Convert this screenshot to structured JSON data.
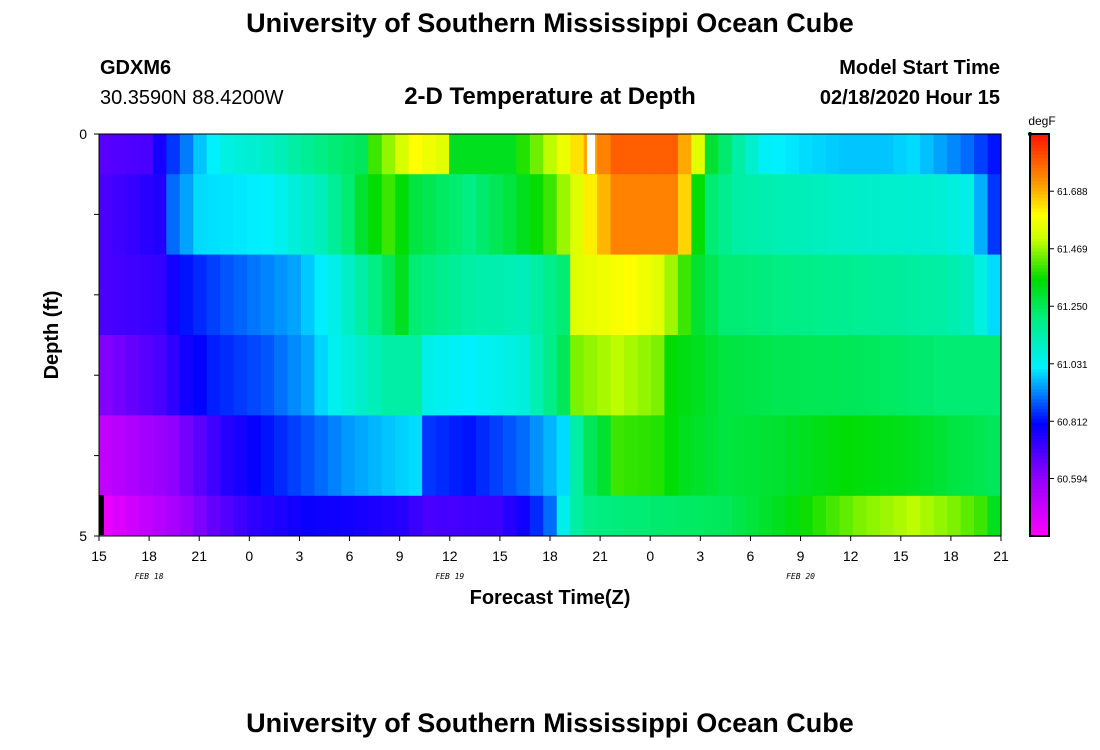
{
  "header": {
    "title": "University of Southern Mississippi Ocean Cube",
    "station_id": "GDXM6",
    "location": "30.3590N 88.4200W",
    "plot_title": "2-D Temperature at Depth",
    "start_label": "Model Start Time",
    "start_value": "02/18/2020 Hour 15"
  },
  "footer": {
    "title": "University of Southern Mississippi Ocean Cube"
  },
  "chart_data": {
    "type": "heatmap",
    "title": "2-D Temperature at Depth",
    "xlabel": "Forecast Time(Z)",
    "ylabel": "Depth (ft)",
    "x_tick_labels": [
      "15",
      "18",
      "21",
      "0",
      "3",
      "6",
      "9",
      "12",
      "15",
      "18",
      "21",
      "0",
      "3",
      "6",
      "9",
      "12",
      "15",
      "18",
      "21"
    ],
    "date_labels": [
      {
        "text": "FEB 18",
        "at_tick": 1
      },
      {
        "text": "FEB 19",
        "at_tick": 7
      },
      {
        "text": "FEB 20",
        "at_tick": 14
      }
    ],
    "y_tick_labels": [
      {
        "text": "0",
        "value": 0
      },
      {
        "text": "5",
        "value": 5
      }
    ],
    "ylim": [
      0,
      5
    ],
    "colorbar": {
      "unit": "degF",
      "range": [
        60.375,
        61.906
      ],
      "tick_labels": [
        "61.688",
        "61.469",
        "61.250",
        "61.031",
        "60.812",
        "60.594"
      ],
      "tick_values": [
        61.688,
        61.469,
        61.25,
        61.031,
        60.812,
        60.594
      ]
    },
    "hours": "hourly from Feb 18 hour 15 to Feb 20 hour 21 (55 columns)",
    "depth_rows": [
      {
        "depth_ft": 0.25,
        "keys": [
          [
            0,
            60.68
          ],
          [
            3,
            60.7
          ],
          [
            5,
            60.85
          ],
          [
            7,
            60.98
          ],
          [
            9,
            61.06
          ],
          [
            12,
            61.1
          ],
          [
            16,
            61.2
          ],
          [
            19,
            61.25
          ],
          [
            20,
            61.4
          ],
          [
            23,
            61.6
          ],
          [
            25,
            61.55
          ],
          [
            26,
            61.32
          ],
          [
            30,
            61.32
          ],
          [
            33,
            61.5
          ],
          [
            36,
            61.7
          ],
          [
            38,
            61.8
          ],
          [
            42,
            61.8
          ],
          [
            43,
            61.7
          ],
          [
            44,
            61.55
          ],
          [
            45,
            61.3
          ],
          [
            47,
            61.15
          ],
          [
            49,
            61.03
          ],
          [
            52,
            61.0
          ],
          [
            55,
            60.98
          ],
          [
            58,
            60.98
          ],
          [
            60,
            61.0
          ],
          [
            62,
            60.95
          ],
          [
            64,
            60.9
          ],
          [
            66,
            60.82
          ],
          [
            67,
            60.82
          ]
        ]
      },
      {
        "depth_ft": 1.0,
        "keys": [
          [
            0,
            60.7
          ],
          [
            4,
            60.76
          ],
          [
            5,
            60.9
          ],
          [
            7,
            61.0
          ],
          [
            12,
            61.02
          ],
          [
            16,
            61.12
          ],
          [
            18,
            61.22
          ],
          [
            19,
            61.3
          ],
          [
            21,
            61.4
          ],
          [
            22,
            61.35
          ],
          [
            23,
            61.28
          ],
          [
            27,
            61.2
          ],
          [
            30,
            61.28
          ],
          [
            33,
            61.4
          ],
          [
            36,
            61.62
          ],
          [
            38,
            61.75
          ],
          [
            42,
            61.75
          ],
          [
            43,
            61.65
          ],
          [
            44,
            61.35
          ],
          [
            45,
            61.22
          ],
          [
            47,
            61.15
          ],
          [
            55,
            61.1
          ],
          [
            62,
            61.08
          ],
          [
            64,
            61.05
          ],
          [
            65,
            60.96
          ],
          [
            66,
            60.85
          ],
          [
            67,
            60.82
          ]
        ]
      },
      {
        "depth_ft": 2.0,
        "keys": [
          [
            0,
            60.7
          ],
          [
            4,
            60.73
          ],
          [
            6,
            60.82
          ],
          [
            9,
            60.88
          ],
          [
            14,
            60.95
          ],
          [
            17,
            61.05
          ],
          [
            19,
            61.15
          ],
          [
            21,
            61.25
          ],
          [
            22,
            61.32
          ],
          [
            23,
            61.22
          ],
          [
            27,
            61.15
          ],
          [
            31,
            61.12
          ],
          [
            34,
            61.22
          ],
          [
            35,
            61.55
          ],
          [
            39,
            61.6
          ],
          [
            41,
            61.55
          ],
          [
            43,
            61.4
          ],
          [
            44,
            61.3
          ],
          [
            46,
            61.22
          ],
          [
            55,
            61.18
          ],
          [
            62,
            61.15
          ],
          [
            64,
            61.12
          ],
          [
            65,
            61.06
          ],
          [
            66,
            61.0
          ]
        ]
      },
      {
        "depth_ft": 3.0,
        "keys": [
          [
            0,
            60.62
          ],
          [
            4,
            60.7
          ],
          [
            6,
            60.78
          ],
          [
            8,
            60.83
          ],
          [
            12,
            60.88
          ],
          [
            15,
            60.95
          ],
          [
            17,
            61.04
          ],
          [
            21,
            61.15
          ],
          [
            23,
            61.15
          ],
          [
            24,
            61.05
          ],
          [
            27,
            61.02
          ],
          [
            31,
            61.07
          ],
          [
            34,
            61.25
          ],
          [
            35,
            61.45
          ],
          [
            38,
            61.5
          ],
          [
            41,
            61.45
          ],
          [
            42,
            61.35
          ],
          [
            44,
            61.32
          ],
          [
            46,
            61.28
          ],
          [
            50,
            61.26
          ],
          [
            56,
            61.25
          ],
          [
            62,
            61.22
          ],
          [
            66,
            61.22
          ]
        ]
      },
      {
        "depth_ft": 4.0,
        "keys": [
          [
            0,
            60.5
          ],
          [
            5,
            60.6
          ],
          [
            9,
            60.75
          ],
          [
            12,
            60.82
          ],
          [
            15,
            60.88
          ],
          [
            18,
            60.94
          ],
          [
            21,
            60.98
          ],
          [
            23,
            61.0
          ],
          [
            24,
            60.85
          ],
          [
            27,
            60.82
          ],
          [
            31,
            60.9
          ],
          [
            34,
            61.0
          ],
          [
            35,
            61.15
          ],
          [
            36,
            61.25
          ],
          [
            37,
            61.3
          ],
          [
            38,
            61.4
          ],
          [
            41,
            61.38
          ],
          [
            43,
            61.32
          ],
          [
            46,
            61.28
          ],
          [
            50,
            61.3
          ],
          [
            55,
            61.35
          ],
          [
            60,
            61.32
          ],
          [
            63,
            61.28
          ],
          [
            66,
            61.25
          ]
        ]
      },
      {
        "depth_ft": 4.75,
        "keys": [
          [
            0,
            60.42
          ],
          [
            5,
            60.55
          ],
          [
            8,
            60.66
          ],
          [
            11,
            60.74
          ],
          [
            15,
            60.79
          ],
          [
            18,
            60.78
          ],
          [
            22,
            60.75
          ],
          [
            24,
            60.7
          ],
          [
            29,
            60.72
          ],
          [
            31,
            60.78
          ],
          [
            33,
            60.9
          ],
          [
            34,
            61.05
          ],
          [
            35,
            61.15
          ],
          [
            36,
            61.2
          ],
          [
            40,
            61.22
          ],
          [
            46,
            61.25
          ],
          [
            50,
            61.32
          ],
          [
            56,
            61.45
          ],
          [
            60,
            61.5
          ],
          [
            63,
            61.45
          ],
          [
            65,
            61.4
          ],
          [
            66,
            61.32
          ]
        ]
      }
    ]
  }
}
